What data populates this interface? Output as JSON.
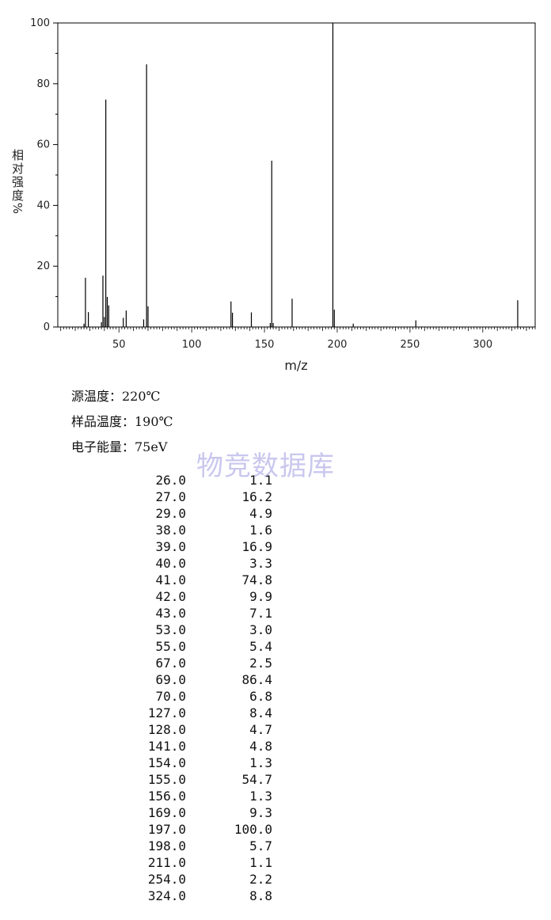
{
  "chart_data": {
    "type": "bar",
    "xlabel": "m/z",
    "ylabel": "相对强度%",
    "xlim": [
      8,
      336
    ],
    "ylim": [
      0,
      100
    ],
    "x_ticks": [
      50,
      100,
      150,
      200,
      250,
      300
    ],
    "y_ticks": [
      0,
      20,
      40,
      60,
      80,
      100
    ],
    "grid": false,
    "legend": "none",
    "bar_color": "#000000",
    "peaks": [
      {
        "mz": 26.0,
        "abundance": 1.1
      },
      {
        "mz": 27.0,
        "abundance": 16.2
      },
      {
        "mz": 29.0,
        "abundance": 4.9
      },
      {
        "mz": 38.0,
        "abundance": 1.6
      },
      {
        "mz": 39.0,
        "abundance": 16.9
      },
      {
        "mz": 40.0,
        "abundance": 3.3
      },
      {
        "mz": 41.0,
        "abundance": 74.8
      },
      {
        "mz": 42.0,
        "abundance": 9.9
      },
      {
        "mz": 43.0,
        "abundance": 7.1
      },
      {
        "mz": 53.0,
        "abundance": 3.0
      },
      {
        "mz": 55.0,
        "abundance": 5.4
      },
      {
        "mz": 67.0,
        "abundance": 2.5
      },
      {
        "mz": 69.0,
        "abundance": 86.4
      },
      {
        "mz": 70.0,
        "abundance": 6.8
      },
      {
        "mz": 127.0,
        "abundance": 8.4
      },
      {
        "mz": 128.0,
        "abundance": 4.7
      },
      {
        "mz": 141.0,
        "abundance": 4.8
      },
      {
        "mz": 154.0,
        "abundance": 1.3
      },
      {
        "mz": 155.0,
        "abundance": 54.7
      },
      {
        "mz": 156.0,
        "abundance": 1.3
      },
      {
        "mz": 169.0,
        "abundance": 9.3
      },
      {
        "mz": 197.0,
        "abundance": 100.0
      },
      {
        "mz": 198.0,
        "abundance": 5.7
      },
      {
        "mz": 211.0,
        "abundance": 1.1
      },
      {
        "mz": 254.0,
        "abundance": 2.2
      },
      {
        "mz": 324.0,
        "abundance": 8.8
      }
    ]
  },
  "conditions": {
    "source_temp": "源温度：220℃",
    "sample_temp": "样品温度：190℃",
    "electron_energy": "电子能量：75eV"
  },
  "watermark": "物竞数据库",
  "table": {
    "rows": [
      {
        "mz": "26.0",
        "abundance": "1.1"
      },
      {
        "mz": "27.0",
        "abundance": "16.2"
      },
      {
        "mz": "29.0",
        "abundance": "4.9"
      },
      {
        "mz": "38.0",
        "abundance": "1.6"
      },
      {
        "mz": "39.0",
        "abundance": "16.9"
      },
      {
        "mz": "40.0",
        "abundance": "3.3"
      },
      {
        "mz": "41.0",
        "abundance": "74.8"
      },
      {
        "mz": "42.0",
        "abundance": "9.9"
      },
      {
        "mz": "43.0",
        "abundance": "7.1"
      },
      {
        "mz": "53.0",
        "abundance": "3.0"
      },
      {
        "mz": "55.0",
        "abundance": "5.4"
      },
      {
        "mz": "67.0",
        "abundance": "2.5"
      },
      {
        "mz": "69.0",
        "abundance": "86.4"
      },
      {
        "mz": "70.0",
        "abundance": "6.8"
      },
      {
        "mz": "127.0",
        "abundance": "8.4"
      },
      {
        "mz": "128.0",
        "abundance": "4.7"
      },
      {
        "mz": "141.0",
        "abundance": "4.8"
      },
      {
        "mz": "154.0",
        "abundance": "1.3"
      },
      {
        "mz": "155.0",
        "abundance": "54.7"
      },
      {
        "mz": "156.0",
        "abundance": "1.3"
      },
      {
        "mz": "169.0",
        "abundance": "9.3"
      },
      {
        "mz": "197.0",
        "abundance": "100.0"
      },
      {
        "mz": "198.0",
        "abundance": "5.7"
      },
      {
        "mz": "211.0",
        "abundance": "1.1"
      },
      {
        "mz": "254.0",
        "abundance": "2.2"
      },
      {
        "mz": "324.0",
        "abundance": "8.8"
      }
    ]
  }
}
